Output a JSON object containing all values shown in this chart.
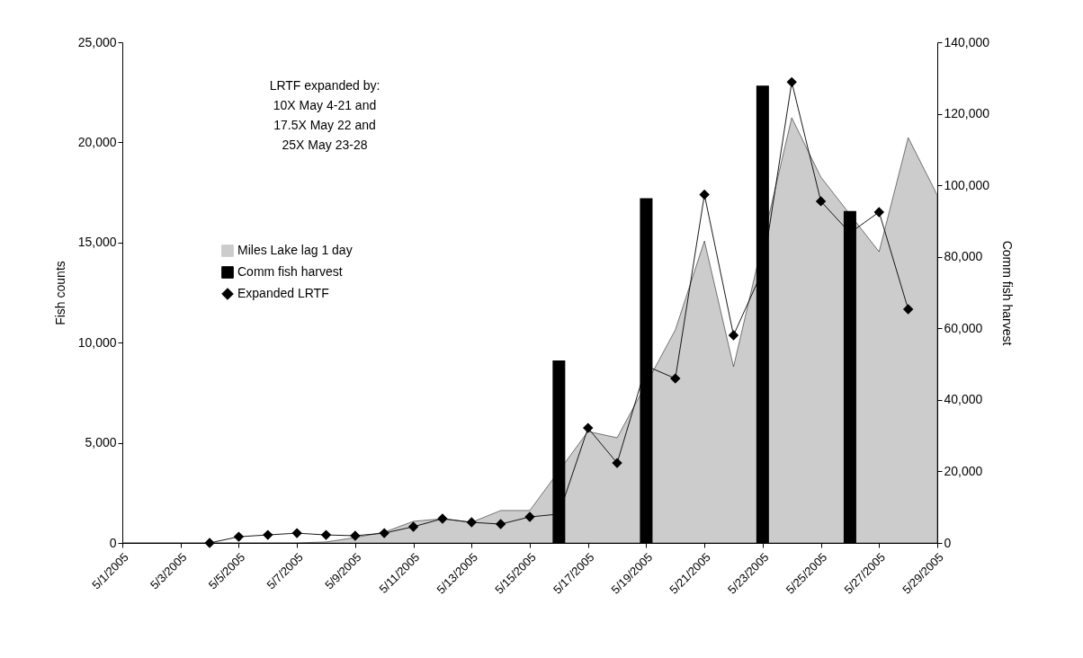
{
  "chart_data": {
    "type": "area",
    "ylabel": "Fish counts",
    "y2label": "Comm fish harvest",
    "x": [
      "2005-05-01",
      "2005-05-02",
      "2005-05-03",
      "2005-05-04",
      "2005-05-05",
      "2005-05-06",
      "2005-05-07",
      "2005-05-08",
      "2005-05-09",
      "2005-05-10",
      "2005-05-11",
      "2005-05-12",
      "2005-05-13",
      "2005-05-14",
      "2005-05-15",
      "2005-05-16",
      "2005-05-17",
      "2005-05-18",
      "2005-05-19",
      "2005-05-20",
      "2005-05-21",
      "2005-05-22",
      "2005-05-23",
      "2005-05-24",
      "2005-05-25",
      "2005-05-26",
      "2005-05-27",
      "2005-05-28",
      "2005-05-29"
    ],
    "series": [
      {
        "name": "Miles Lake lag 1 day",
        "color": "#cccccc",
        "values": [
          0,
          0,
          0,
          0,
          0,
          0,
          0,
          50,
          270,
          540,
          1080,
          1210,
          1030,
          1620,
          1620,
          null,
          5570,
          5250,
          null,
          10640,
          15080,
          8800,
          null,
          21230,
          18270,
          null,
          14540,
          20240,
          17370
        ]
      },
      {
        "name": "Comm fish harvest",
        "type": "bar",
        "axis": "y2",
        "color": "#000000",
        "x": [
          "2005-05-16",
          "2005-05-19",
          "2005-05-23",
          "2005-05-26"
        ],
        "values": [
          51000,
          96400,
          127900,
          92800
        ]
      },
      {
        "name": "Expanded LRTF",
        "type": "line",
        "color": "#000000",
        "marker": "diamond",
        "x": [
          "2005-05-04",
          "2005-05-05",
          "2005-05-06",
          "2005-05-07",
          "2005-05-08",
          "2005-05-09",
          "2005-05-10",
          "2005-05-11",
          "2005-05-12",
          "2005-05-13",
          "2005-05-14",
          "2005-05-15",
          "2005-05-16",
          "2005-05-17",
          "2005-05-18",
          "2005-05-19",
          "2005-05-20",
          "2005-05-21",
          "2005-05-22",
          "2005-05-23",
          "2005-05-24",
          "2005-05-25",
          "2005-05-26",
          "2005-05-27",
          "2005-05-28"
        ],
        "values": [
          0,
          310,
          400,
          490,
          400,
          360,
          490,
          810,
          1210,
          1030,
          940,
          1300,
          1440,
          5740,
          3990,
          8840,
          8210,
          17390,
          10370,
          13600,
          23010,
          17060,
          15480,
          16520,
          11670
        ]
      }
    ],
    "xlim": [
      "2005-05-01",
      "2005-05-29"
    ],
    "xticks": [
      {
        "value": "2005-05-01",
        "label": "5/1/2005"
      },
      {
        "value": "2005-05-03",
        "label": "5/3/2005"
      },
      {
        "value": "2005-05-05",
        "label": "5/5/2005"
      },
      {
        "value": "2005-05-07",
        "label": "5/7/2005"
      },
      {
        "value": "2005-05-09",
        "label": "5/9/2005"
      },
      {
        "value": "2005-05-11",
        "label": "5/11/2005"
      },
      {
        "value": "2005-05-13",
        "label": "5/13/2005"
      },
      {
        "value": "2005-05-15",
        "label": "5/15/2005"
      },
      {
        "value": "2005-05-17",
        "label": "5/17/2005"
      },
      {
        "value": "2005-05-19",
        "label": "5/19/2005"
      },
      {
        "value": "2005-05-21",
        "label": "5/21/2005"
      },
      {
        "value": "2005-05-23",
        "label": "5/23/2005"
      },
      {
        "value": "2005-05-25",
        "label": "5/25/2005"
      },
      {
        "value": "2005-05-27",
        "label": "5/27/2005"
      },
      {
        "value": "2005-05-29",
        "label": "5/29/2005"
      }
    ],
    "ylim": [
      0,
      25000
    ],
    "yticks": [
      0,
      {
        "value": 5000,
        "label": "5,000"
      },
      {
        "value": 10000,
        "label": "10,000"
      },
      {
        "value": 15000,
        "label": "15,000"
      },
      {
        "value": 20000,
        "label": "20,000"
      },
      {
        "value": 25000,
        "label": "25,000"
      }
    ],
    "y2lim": [
      0,
      140000
    ],
    "y2ticks": [
      0,
      {
        "value": 20000,
        "label": "20,000"
      },
      {
        "value": 40000,
        "label": "40,000"
      },
      {
        "value": 60000,
        "label": "60,000"
      },
      {
        "value": 80000,
        "label": "80,000"
      },
      {
        "value": 100000,
        "label": "100,000"
      },
      {
        "value": 120000,
        "label": "120,000"
      },
      {
        "value": 140000,
        "label": "140,000"
      }
    ],
    "annotations": [
      "LRTF expanded by:\n10X May 4-21 and\n17.5X May 22 and\n25X May 23-28"
    ],
    "legend": "left",
    "grid": false
  }
}
